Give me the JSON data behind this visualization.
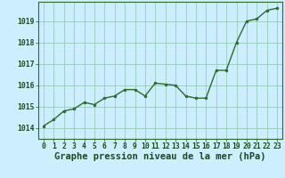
{
  "x": [
    0,
    1,
    2,
    3,
    4,
    5,
    6,
    7,
    8,
    9,
    10,
    11,
    12,
    13,
    14,
    15,
    16,
    17,
    18,
    19,
    20,
    21,
    22,
    23
  ],
  "y": [
    1014.1,
    1014.4,
    1014.8,
    1014.9,
    1015.2,
    1015.1,
    1015.4,
    1015.5,
    1015.8,
    1015.8,
    1015.5,
    1016.1,
    1016.05,
    1016.0,
    1015.5,
    1015.4,
    1015.4,
    1016.7,
    1016.7,
    1018.0,
    1019.0,
    1019.1,
    1019.5,
    1019.6
  ],
  "line_color": "#2d6a2d",
  "marker": "o",
  "marker_size": 2.0,
  "bg_color": "#cceeff",
  "grid_color": "#99ccbb",
  "title": "Graphe pression niveau de la mer (hPa)",
  "text_color": "#1a4a1a",
  "ylabel_ticks": [
    1014,
    1015,
    1016,
    1017,
    1018,
    1019
  ],
  "ylim": [
    1013.5,
    1019.9
  ],
  "xlim": [
    -0.5,
    23.5
  ],
  "xticks": [
    0,
    1,
    2,
    3,
    4,
    5,
    6,
    7,
    8,
    9,
    10,
    11,
    12,
    13,
    14,
    15,
    16,
    17,
    18,
    19,
    20,
    21,
    22,
    23
  ],
  "xtick_labels": [
    "0",
    "1",
    "2",
    "3",
    "4",
    "5",
    "6",
    "7",
    "8",
    "9",
    "10",
    "11",
    "12",
    "13",
    "14",
    "15",
    "16",
    "17",
    "18",
    "19",
    "20",
    "21",
    "22",
    "23"
  ],
  "title_fontsize": 7.5,
  "tick_fontsize": 5.8
}
